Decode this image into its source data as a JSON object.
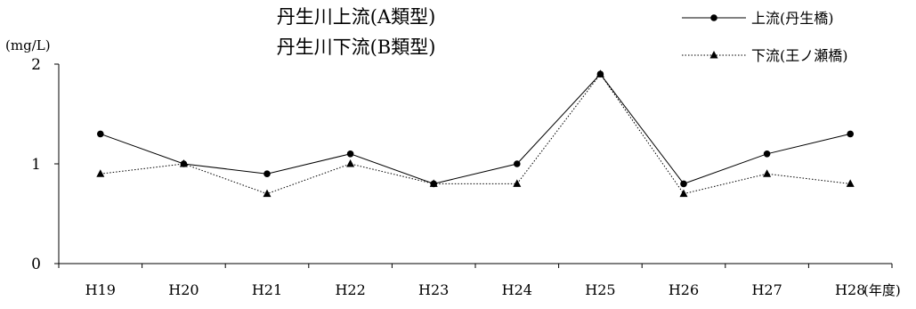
{
  "chart_data": {
    "type": "line",
    "title_lines": [
      "丹生川上流(A類型)",
      "丹生川下流(B類型)"
    ],
    "ylabel": "(mg/L)",
    "xlabel": "(年度)",
    "ylim": [
      0,
      2
    ],
    "yticks": [
      0,
      1,
      2
    ],
    "categories": [
      "H19",
      "H20",
      "H21",
      "H22",
      "H23",
      "H24",
      "H25",
      "H26",
      "H27",
      "H28"
    ],
    "grid": false,
    "legend_position": "top-right",
    "series": [
      {
        "name": "上流(丹生橋)",
        "marker": "circle",
        "line_style": "solid",
        "values": [
          1.3,
          1.0,
          0.9,
          1.1,
          0.8,
          1.0,
          1.9,
          0.8,
          1.1,
          1.3
        ]
      },
      {
        "name": "下流(王ノ瀬橋)",
        "marker": "triangle",
        "line_style": "dotted",
        "values": [
          0.9,
          1.0,
          0.7,
          1.0,
          0.8,
          0.8,
          1.9,
          0.7,
          0.9,
          0.8
        ]
      }
    ]
  }
}
